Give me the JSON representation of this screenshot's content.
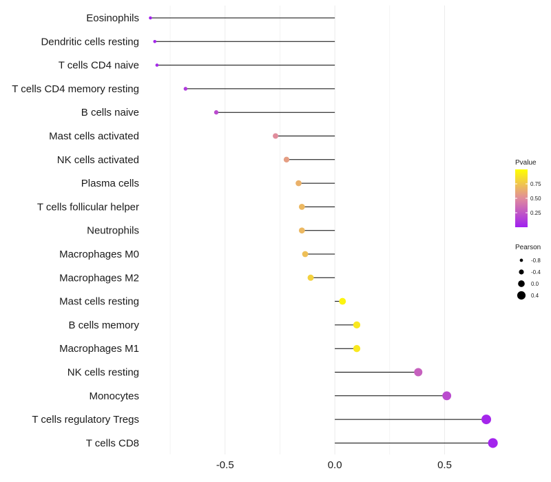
{
  "chart_data": {
    "type": "lollipop",
    "title": "",
    "xlabel": "",
    "ylabel": "",
    "xlim": [
      -0.86,
      0.74
    ],
    "x_ticks": [
      -0.5,
      0.0,
      0.5
    ],
    "x_tick_labels": [
      "-0.5",
      "0.0",
      "0.5"
    ],
    "grid": "vertical",
    "categories": [
      "Eosinophils",
      "Dendritic cells resting",
      "T cells CD4 naive",
      "T cells CD4 memory resting",
      "B cells naive",
      "Mast cells activated",
      "NK cells activated",
      "Plasma cells",
      "T cells follicular helper",
      "Neutrophils",
      "Macrophages M0",
      "Macrophages M2",
      "Mast cells resting",
      "B cells memory",
      "Macrophages M1",
      "NK cells resting",
      "Monocytes",
      "T cells regulatory  Tregs",
      "T cells CD8"
    ],
    "pearson": [
      -0.84,
      -0.82,
      -0.81,
      -0.68,
      -0.54,
      -0.27,
      -0.22,
      -0.165,
      -0.15,
      -0.15,
      -0.135,
      -0.11,
      0.035,
      0.1,
      0.1,
      0.38,
      0.51,
      0.69,
      0.72
    ],
    "pvalue": [
      0.02,
      0.03,
      0.04,
      0.12,
      0.2,
      0.5,
      0.58,
      0.66,
      0.69,
      0.69,
      0.72,
      0.8,
      0.95,
      0.9,
      0.9,
      0.3,
      0.2,
      0.03,
      0.02
    ],
    "legend": {
      "color": {
        "title": "Pvalue",
        "ticks": [
          0.25,
          0.5,
          0.75
        ],
        "tick_labels": [
          "0.25",
          "0.50",
          "0.75"
        ],
        "range": [
          0.0,
          1.0
        ],
        "low_color": "#a020f0",
        "mid_color": "#e08c9c",
        "high_color": "#ffff00"
      },
      "size": {
        "title": "Pearson",
        "values": [
          -0.8,
          -0.4,
          0.0,
          0.4
        ],
        "labels": [
          "-0.8",
          "-0.4",
          "0.0",
          "0.4"
        ]
      },
      "position": "right"
    },
    "colors": {
      "stem": "#000000",
      "grid": "#ebebeb"
    }
  }
}
